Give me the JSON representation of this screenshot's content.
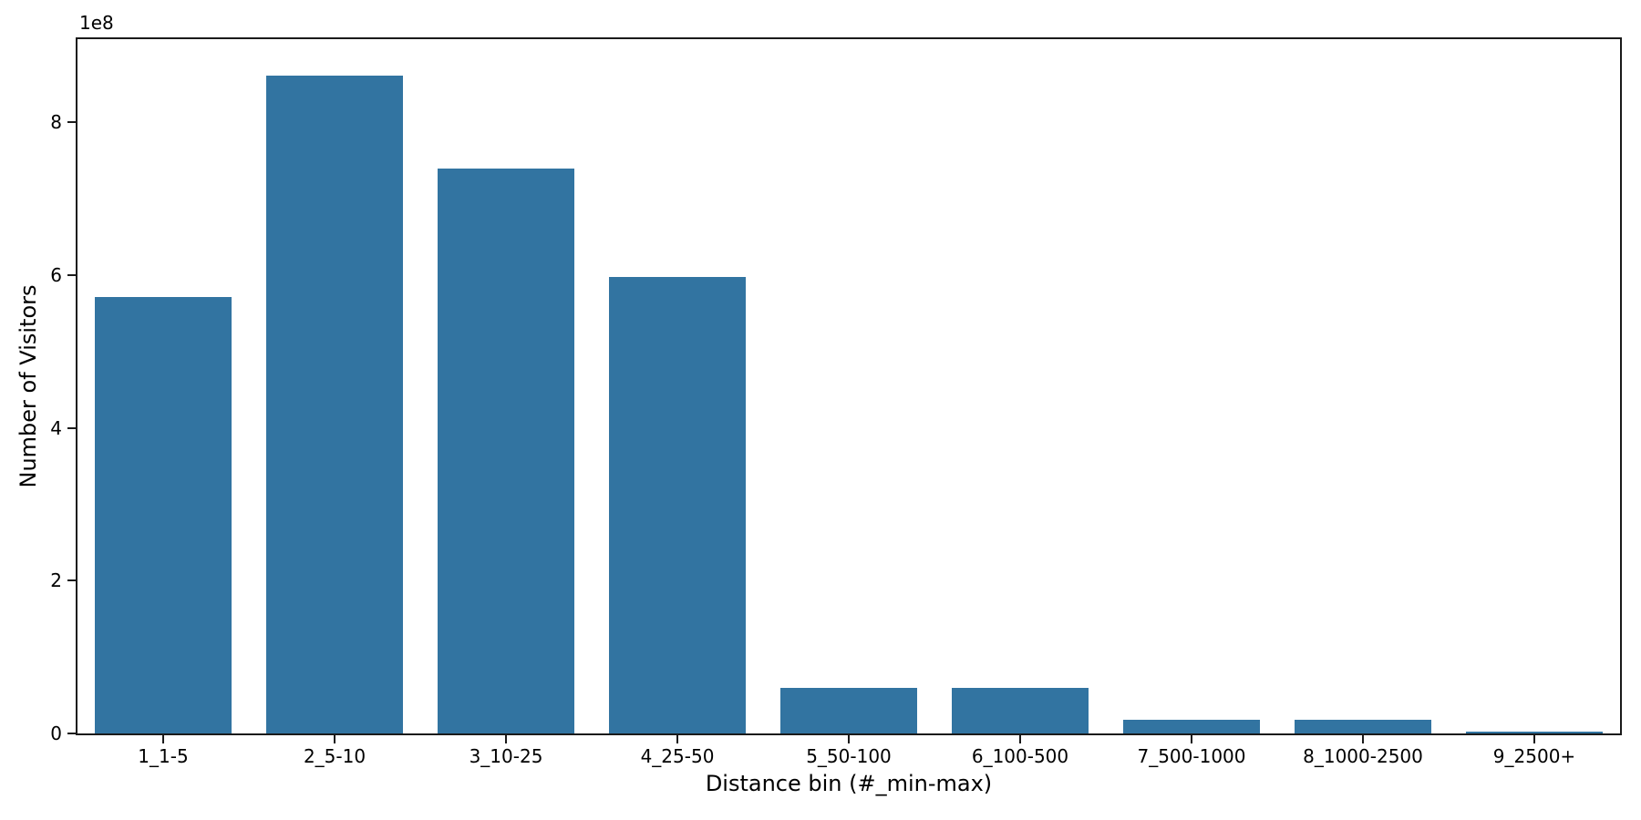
{
  "chart_data": {
    "type": "bar",
    "title": "",
    "xlabel": "Distance bin (#_min-max)",
    "ylabel": "Number of Visitors",
    "y_offset_text": "1e8",
    "categories": [
      "1_1-5",
      "2_5-10",
      "3_10-25",
      "4_25-50",
      "5_50-100",
      "6_100-500",
      "7_500-1000",
      "8_1000-2500",
      "9_2500+"
    ],
    "values": [
      572000000,
      861000000,
      740000000,
      598000000,
      60000000,
      60000000,
      18000000,
      18000000,
      2500000
    ],
    "bar_color": "#3274a1",
    "axis_color": "#1a1a1a",
    "ylim": [
      0,
      909000000
    ],
    "yticks": [
      0,
      200000000,
      400000000,
      600000000,
      800000000
    ],
    "ytick_labels": [
      "0",
      "2",
      "4",
      "6",
      "8"
    ],
    "grid": false,
    "legend": null,
    "bar_width_fraction": 0.8
  }
}
